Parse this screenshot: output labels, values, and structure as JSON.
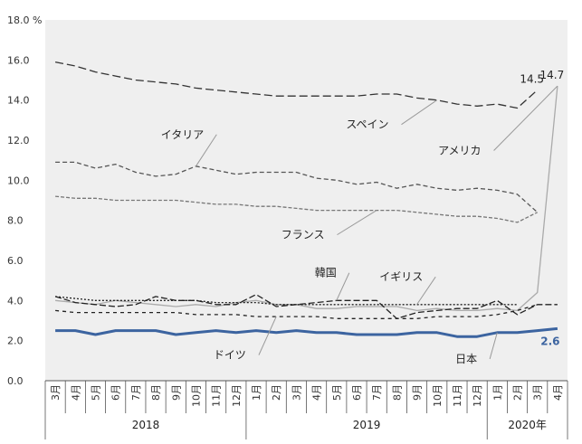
{
  "chart_data": {
    "type": "line",
    "y_unit": "%",
    "ylim": [
      0,
      18
    ],
    "y_ticks": [
      "0.0",
      "2.0",
      "4.0",
      "6.0",
      "8.0",
      "10.0",
      "12.0",
      "14.0",
      "16.0",
      "18.0"
    ],
    "categories": [
      "3月",
      "4月",
      "5月",
      "6月",
      "7月",
      "8月",
      "9月",
      "10月",
      "11月",
      "12月",
      "1月",
      "2月",
      "3月",
      "4月",
      "5月",
      "6月",
      "7月",
      "8月",
      "9月",
      "10月",
      "11月",
      "12月",
      "1月",
      "2月",
      "3月",
      "4月"
    ],
    "year_groups": [
      {
        "label": "2018",
        "start": 0,
        "end": 9
      },
      {
        "label": "2019",
        "start": 10,
        "end": 21
      },
      {
        "label": "2020年",
        "start": 22,
        "end": 25
      }
    ],
    "series": [
      {
        "name": "スペイン",
        "color": "#333333",
        "dash": "9,4",
        "values": [
          15.9,
          15.7,
          15.4,
          15.2,
          15.0,
          14.9,
          14.8,
          14.6,
          14.5,
          14.4,
          14.3,
          14.2,
          14.2,
          14.2,
          14.2,
          14.2,
          14.3,
          14.3,
          14.1,
          14.0,
          13.8,
          13.7,
          13.8,
          13.6,
          14.5,
          null
        ]
      },
      {
        "name": "イタリア",
        "color": "#555555",
        "dash": "5,3",
        "values": [
          10.9,
          10.9,
          10.6,
          10.8,
          10.4,
          10.2,
          10.3,
          10.7,
          10.5,
          10.3,
          10.4,
          10.4,
          10.4,
          10.1,
          10.0,
          9.8,
          9.9,
          9.6,
          9.8,
          9.6,
          9.5,
          9.6,
          9.5,
          9.3,
          8.4,
          null
        ]
      },
      {
        "name": "フランス",
        "color": "#777777",
        "dash": "4,2",
        "values": [
          9.2,
          9.1,
          9.1,
          9.0,
          9.0,
          9.0,
          9.0,
          8.9,
          8.8,
          8.8,
          8.7,
          8.7,
          8.6,
          8.5,
          8.5,
          8.5,
          8.5,
          8.5,
          8.4,
          8.3,
          8.2,
          8.2,
          8.1,
          7.9,
          8.4,
          null
        ]
      },
      {
        "name": "アメリカ",
        "color": "#aaaaaa",
        "dash": "",
        "values": [
          4.0,
          3.9,
          3.8,
          4.0,
          3.9,
          3.8,
          3.7,
          3.8,
          3.7,
          3.9,
          4.0,
          3.8,
          3.8,
          3.6,
          3.6,
          3.7,
          3.7,
          3.7,
          3.5,
          3.6,
          3.5,
          3.5,
          3.6,
          3.5,
          4.4,
          14.7
        ]
      },
      {
        "name": "韓国",
        "color": "#222222",
        "dash": "7,3",
        "values": [
          4.2,
          3.9,
          3.8,
          3.7,
          3.8,
          4.2,
          4.0,
          4.0,
          3.8,
          3.8,
          4.3,
          3.7,
          3.8,
          3.9,
          4.0,
          4.0,
          4.0,
          3.1,
          3.4,
          3.5,
          3.6,
          3.6,
          4.0,
          3.3,
          3.8,
          3.8
        ]
      },
      {
        "name": "イギリス",
        "color": "#222222",
        "dash": "2,2",
        "values": [
          4.2,
          4.1,
          4.0,
          4.0,
          4.0,
          4.0,
          4.0,
          4.0,
          3.9,
          3.9,
          3.9,
          3.8,
          3.8,
          3.8,
          3.8,
          3.8,
          3.8,
          3.8,
          3.8,
          3.8,
          3.8,
          3.8,
          3.8,
          3.8,
          null,
          null
        ]
      },
      {
        "name": "ドイツ",
        "color": "#222222",
        "dash": "4,4",
        "values": [
          3.5,
          3.4,
          3.4,
          3.4,
          3.4,
          3.4,
          3.4,
          3.3,
          3.3,
          3.3,
          3.2,
          3.2,
          3.2,
          3.2,
          3.1,
          3.1,
          3.1,
          3.1,
          3.1,
          3.2,
          3.2,
          3.2,
          3.3,
          3.5,
          3.8,
          null
        ]
      },
      {
        "name": "日本",
        "color": "#3c64a0",
        "dash": "",
        "width": 3,
        "values": [
          2.5,
          2.5,
          2.3,
          2.5,
          2.5,
          2.5,
          2.3,
          2.4,
          2.5,
          2.4,
          2.5,
          2.4,
          2.5,
          2.4,
          2.4,
          2.3,
          2.3,
          2.3,
          2.4,
          2.4,
          2.2,
          2.2,
          2.4,
          2.4,
          2.5,
          2.6
        ]
      }
    ],
    "value_labels": [
      {
        "text": "14.7",
        "series": "アメリカ",
        "index": 25
      },
      {
        "text": "14.5",
        "series": "スペイン",
        "index": 24
      },
      {
        "text": "2.6",
        "series": "日本",
        "index": 25
      }
    ],
    "annotations": [
      {
        "text": "スペイン",
        "series": "スペイン",
        "index": 19,
        "lx": 16.6,
        "ly": 12.6
      },
      {
        "text": "アメリカ",
        "series": "アメリカ",
        "index": 25,
        "lx": 21.2,
        "ly": 11.3
      },
      {
        "text": "イタリア",
        "series": "イタリア",
        "index": 7,
        "lx": 7.4,
        "ly": 12.1
      },
      {
        "text": "フランス",
        "series": "フランス",
        "index": 16,
        "lx": 13.4,
        "ly": 7.1
      },
      {
        "text": "韓国",
        "series": "韓国",
        "index": 14,
        "lx": 14.0,
        "ly": 5.2
      },
      {
        "text": "イギリス",
        "series": "イギリス",
        "index": 18,
        "lx": 18.3,
        "ly": 5.0
      },
      {
        "text": "ドイツ",
        "series": "ドイツ",
        "index": 11,
        "lx": 9.5,
        "ly": 1.1
      },
      {
        "text": "日本",
        "series": "日本",
        "index": 22,
        "lx": 21.0,
        "ly": 0.9
      }
    ],
    "colors": {
      "plot_bg": "#efefef",
      "axis": "#555555",
      "jp": "#3c64a0"
    }
  }
}
